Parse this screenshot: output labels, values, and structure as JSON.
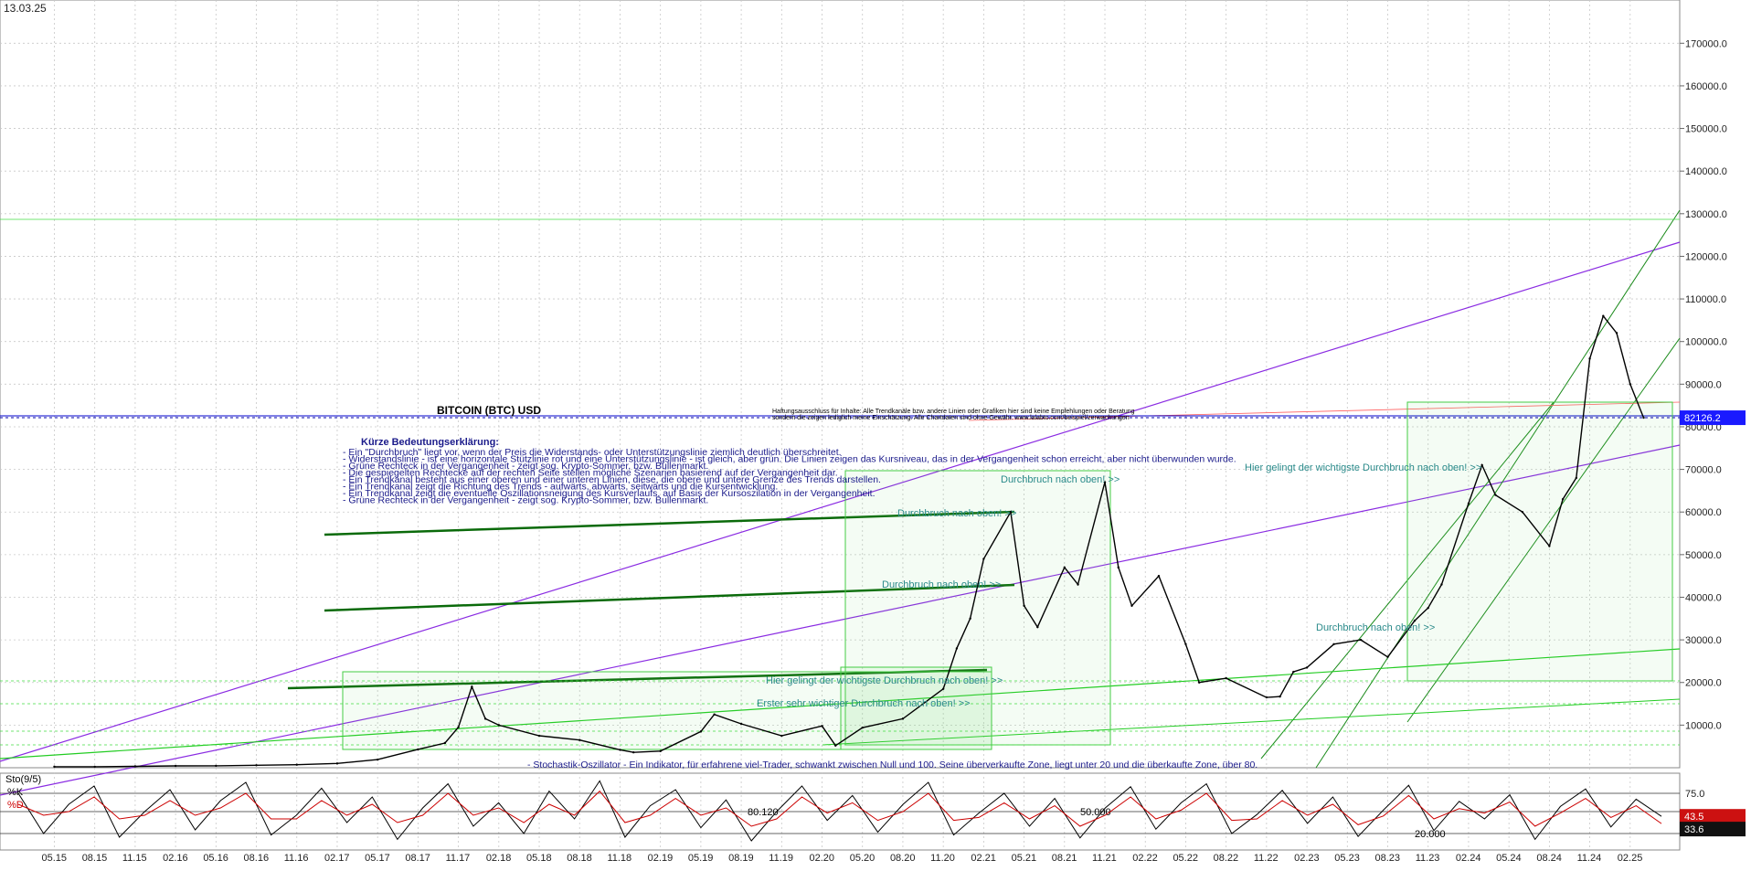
{
  "header": {
    "date": "13.03.25"
  },
  "chart_data": [
    {
      "type": "line",
      "title": "BITCOIN (BTC) USD",
      "disclaimer": [
        "Haftungsausschluss für Inhalte: Alle Trendkanäle bzw. andere Linien oder Grafiken hier sind keine Empfehlungen oder Beratung",
        "sondern die zeigen lediglich meine Einschätzung. Alle Chartdaten sind ohne Gewähr. www.lalabtc.com/beispiel/zerwachungen"
      ],
      "legend_title": "Kürze Bedeutungserklärung:",
      "legend_lines": [
        "- Ein \"Durchbruch\" liegt vor, wenn der Preis die Widerstands- oder Unterstützungslinie ziemlich deutlich überschreitet.",
        "- Widerstandslinie - ist eine horizontale Stützlinie rot und eine Unterstützungslinie - ist gleich, aber grün. Die Linien zeigen das Kursniveau, das in der Vergangenheit schon erreicht, aber nicht überwunden wurde.",
        "- Grüne Rechteck in der Vergangenheit - zeigt sog. Krypto-Sommer, bzw. Bullenmarkt.",
        "- Die gespiegelten Rechtecke auf der rechten Seite stellen mögliche Szenarien basierend auf der Vergangenheit dar.",
        "- Ein Trendkanal besteht aus einer oberen und einer unteren Linien, diese, die obere und untere Grenze des Trends darstellen.",
        "- Ein Trendkanal zeigt die Richtung des Trends - aufwärts, abwärts, seitwärts und die Kursentwicklung.",
        "- Ein Trendkanal zeigt die eventuelle Oszillationsneigung des Kursverlaufs, auf Basis der Kursoszilation in der Vergangenheit.",
        "- Grüne Rechteck in der Vergangenheit - zeigt sog. Krypto-Sommer, bzw. Bullenmarkt."
      ],
      "annotations": [
        "Durchbruch nach oben! >>",
        "Durchbruch nach oben! >>",
        "Durchbruch nach oben! >>",
        "Durchbruch nach oben! >>",
        "Hier gelingt der wichtigste Durchbruch nach oben! >>",
        "Erster sehr wichtiger Durchbruch nach oben! >>",
        "Hier gelingt der wichtigste Durchbruch nach oben! >>"
      ],
      "stochastic_note": "- Stochastik-Oszillator - Ein Indikator, für erfahrene viel-Trader, schwankt zwischen Null und 100. Seine überverkaufte Zone, liegt unter 20 und die überkaufte Zone, über 80.",
      "y_ticks": [
        "10000.0",
        "20000.0",
        "30000.0",
        "40000.0",
        "50000.0",
        "60000.0",
        "70000.0",
        "80000.0",
        "90000.0",
        "100000.0",
        "110000.0",
        "120000.0",
        "130000.0",
        "140000.0",
        "150000.0",
        "160000.0",
        "170000.0"
      ],
      "ylim": [
        0,
        178000
      ],
      "last_price_label": "82126.2",
      "last_price": 82126.2,
      "x_ticks": [
        "05.15",
        "08.15",
        "11.15",
        "02.16",
        "05.16",
        "08.16",
        "11.16",
        "02.17",
        "05.17",
        "08.17",
        "11.17",
        "02.18",
        "05.18",
        "08.18",
        "11.18",
        "02.19",
        "05.19",
        "08.19",
        "11.19",
        "02.20",
        "05.20",
        "08.20",
        "11.20",
        "02.21",
        "05.21",
        "08.21",
        "11.21",
        "02.22",
        "05.22",
        "08.22",
        "11.22",
        "02.23",
        "05.23",
        "08.23",
        "11.23",
        "02.24",
        "05.24",
        "08.24",
        "11.24",
        "02.25"
      ],
      "price_series": {
        "x": [
          "05.15",
          "08.15",
          "11.15",
          "02.16",
          "05.16",
          "08.16",
          "11.16",
          "02.17",
          "05.17",
          "08.17",
          "10.17",
          "11.17",
          "12.17",
          "01.18",
          "02.18",
          "05.18",
          "08.18",
          "11.18",
          "12.18",
          "02.19",
          "05.19",
          "06.19",
          "08.19",
          "11.19",
          "02.20",
          "03.20",
          "05.20",
          "08.20",
          "11.20",
          "12.20",
          "01.21",
          "02.21",
          "04.21",
          "05.21",
          "06.21",
          "08.21",
          "09.21",
          "11.21",
          "12.21",
          "01.22",
          "03.22",
          "05.22",
          "06.22",
          "08.22",
          "11.22",
          "12.22",
          "01.23",
          "02.23",
          "04.23",
          "06.23",
          "08.23",
          "10.23",
          "11.23",
          "12.23",
          "02.24",
          "03.24",
          "04.24",
          "06.24",
          "08.24",
          "09.24",
          "10.24",
          "11.24",
          "12.24",
          "01.25",
          "02.25",
          "03.25"
        ],
        "values": [
          240,
          230,
          330,
          420,
          450,
          580,
          700,
          1000,
          1900,
          4300,
          5800,
          9500,
          19000,
          11500,
          10000,
          7500,
          6500,
          4200,
          3600,
          3900,
          8500,
          12500,
          10300,
          7500,
          9800,
          5200,
          9400,
          11500,
          18500,
          28000,
          35000,
          49000,
          60000,
          38000,
          33000,
          47000,
          43000,
          67000,
          47000,
          38000,
          45000,
          29000,
          20000,
          21000,
          16500,
          16700,
          22500,
          23500,
          29000,
          30000,
          26000,
          34500,
          37500,
          43000,
          62000,
          71000,
          64000,
          60000,
          52000,
          63000,
          68000,
          96000,
          106000,
          102000,
          90000,
          82126
        ]
      },
      "stochastic": {
        "label": "Sto(9/5)",
        "k_label": "%K",
        "d_label": "%D",
        "k_value": "43.5",
        "d_value": "33.6",
        "y_ticks": [
          "20.000",
          "50.000",
          "75.0"
        ],
        "peak_label": "80.120",
        "ylim": [
          0,
          100
        ],
        "k_values": [
          75,
          20,
          60,
          85,
          15,
          50,
          80,
          25,
          65,
          90,
          18,
          45,
          82,
          35,
          70,
          12,
          55,
          88,
          30,
          62,
          20,
          78,
          40,
          92,
          15,
          58,
          80,
          28,
          66,
          10,
          50,
          85,
          38,
          72,
          22,
          60,
          90,
          18,
          48,
          75,
          30,
          68,
          14,
          55,
          84,
          26,
          62,
          88,
          20,
          46,
          79,
          34,
          70,
          16,
          52,
          86,
          24,
          64,
          40,
          73,
          12,
          57,
          81,
          29,
          67,
          43.5
        ],
        "d_values": [
          60,
          45,
          50,
          70,
          40,
          45,
          65,
          45,
          55,
          75,
          40,
          40,
          65,
          45,
          60,
          35,
          45,
          75,
          45,
          55,
          35,
          60,
          45,
          78,
          35,
          45,
          68,
          45,
          55,
          30,
          40,
          70,
          48,
          62,
          38,
          50,
          75,
          38,
          42,
          62,
          40,
          58,
          30,
          45,
          70,
          40,
          52,
          75,
          38,
          40,
          65,
          45,
          60,
          32,
          44,
          72,
          40,
          54,
          48,
          63,
          30,
          48,
          68,
          42,
          58,
          33.6
        ]
      }
    }
  ]
}
